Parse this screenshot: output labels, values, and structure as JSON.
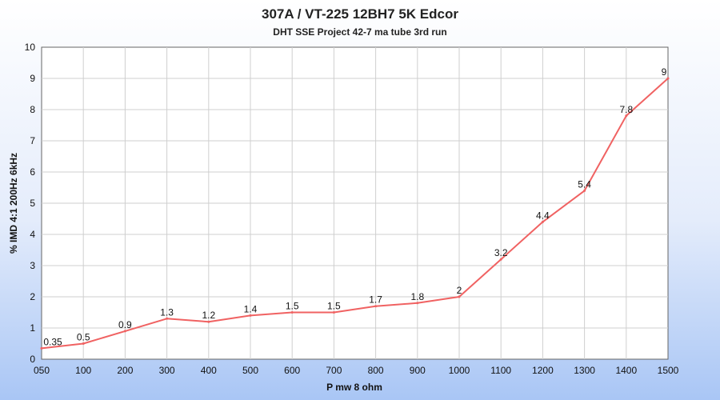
{
  "chart_data": {
    "type": "line",
    "title": "307A / VT-225 12BH7  5K Edcor",
    "subtitle": "DHT SSE Project 42-7 ma tube 3rd run",
    "xlabel": "P mw 8 ohm",
    "ylabel": "% IMD 4:1 200Hz 6kHz",
    "categories": [
      "050",
      "100",
      "200",
      "300",
      "400",
      "500",
      "600",
      "700",
      "800",
      "900",
      "1000",
      "1100",
      "1200",
      "1300",
      "1400",
      "1500"
    ],
    "series": [
      {
        "values": [
          0.35,
          0.5,
          0.9,
          1.3,
          1.2,
          1.4,
          1.5,
          1.5,
          1.7,
          1.8,
          2,
          3.2,
          4.4,
          5.4,
          7.8,
          9
        ],
        "labels": [
          "0.35",
          "0.5",
          "0.9",
          "1.3",
          "1.2",
          "1.4",
          "1.5",
          "1.5",
          "1.7",
          "1.8",
          "2",
          "3.2",
          "4.4",
          "5.4",
          "7.8",
          "9"
        ],
        "color": "#f06262"
      }
    ],
    "ylim": [
      0,
      10
    ],
    "yticks": [
      "0",
      "1",
      "2",
      "3",
      "4",
      "5",
      "6",
      "7",
      "8",
      "9",
      "10"
    ],
    "grid": true,
    "legend": "none"
  }
}
